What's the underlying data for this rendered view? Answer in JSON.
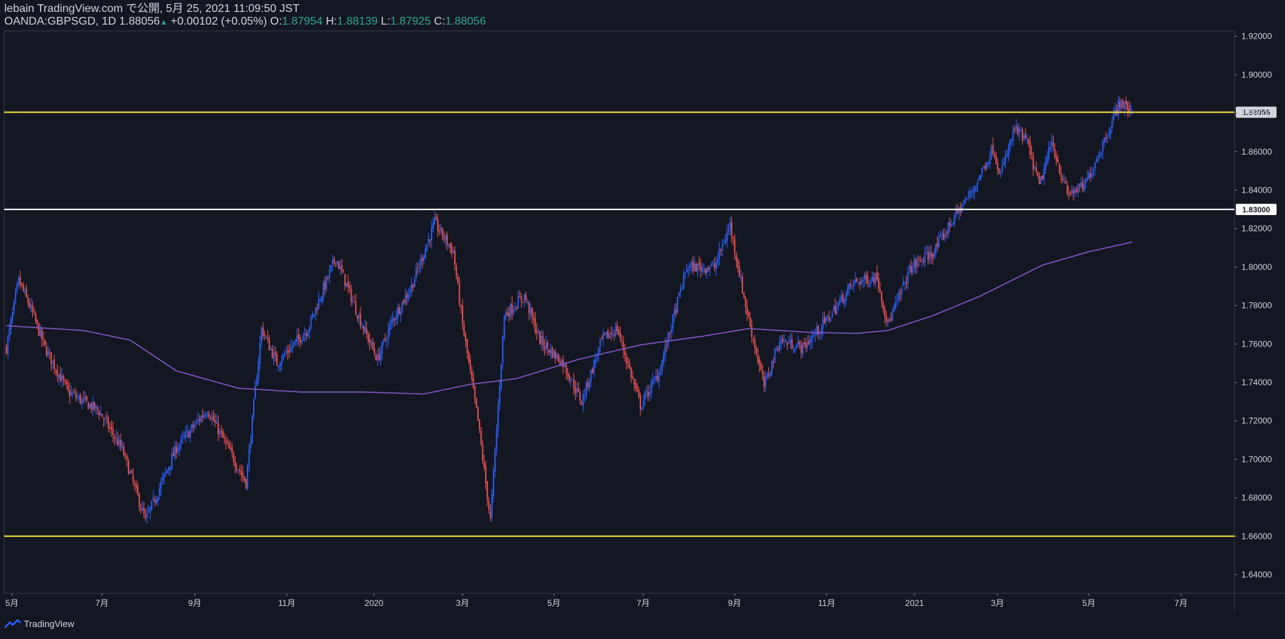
{
  "header": {
    "line1": "lebain TradingView.com で公開, 5月 25, 2021 11:09:50 JST",
    "symbol": "OANDA:GBPSGD, 1D",
    "last": "1.88056",
    "change": "+0.00102 (+0.05%)",
    "o_label": "O:",
    "o_value": "1.87954",
    "h_label": "H:",
    "h_value": "1.88139",
    "l_label": "L:",
    "l_value": "1.87925",
    "c_label": "C:",
    "c_value": "1.88056",
    "up_arrow": "▲"
  },
  "footer": {
    "brand": "TradingView",
    "icon": "tradingview-logo-icon"
  },
  "colors": {
    "background": "#131722",
    "up": "#2962ff",
    "down": "#ef5350",
    "ma": "#7e57c2",
    "hline_yellow": "#f5e038",
    "hline_white": "#ffffff",
    "text": "#d1d4dc",
    "axis": "#363a45"
  },
  "chart_data": {
    "type": "candlestick",
    "title": "OANDA:GBPSGD, 1D",
    "ylim": [
      1.63,
      1.925
    ],
    "y_ticks": [
      "1.64000",
      "1.66000",
      "1.68000",
      "1.70000",
      "1.72000",
      "1.74000",
      "1.76000",
      "1.78000",
      "1.80000",
      "1.82000",
      "1.84000",
      "1.86000",
      "1.88000",
      "1.90000",
      "1.92000"
    ],
    "x_ticks": [
      "5月",
      "7月",
      "9月",
      "11月",
      "2020",
      "3月",
      "5月",
      "7月",
      "9月",
      "11月",
      "2021",
      "3月",
      "5月",
      "7月"
    ],
    "horizontal_lines": [
      {
        "value": 1.88056,
        "label": "1.88056",
        "color": "yellow"
      },
      {
        "value": 1.83,
        "label": "1.83000",
        "color": "white"
      },
      {
        "value": 1.66,
        "label": "",
        "color": "yellow"
      }
    ],
    "price_anchors": [
      {
        "t": 0,
        "close": 1.758
      },
      {
        "t": 8,
        "close": 1.793
      },
      {
        "t": 16,
        "close": 1.778
      },
      {
        "t": 25,
        "close": 1.758
      },
      {
        "t": 40,
        "close": 1.735
      },
      {
        "t": 60,
        "close": 1.725
      },
      {
        "t": 75,
        "close": 1.705
      },
      {
        "t": 90,
        "close": 1.668
      },
      {
        "t": 110,
        "close": 1.706
      },
      {
        "t": 130,
        "close": 1.726
      },
      {
        "t": 155,
        "close": 1.688
      },
      {
        "t": 165,
        "close": 1.768
      },
      {
        "t": 175,
        "close": 1.75
      },
      {
        "t": 195,
        "close": 1.768
      },
      {
        "t": 213,
        "close": 1.805
      },
      {
        "t": 230,
        "close": 1.77
      },
      {
        "t": 240,
        "close": 1.752
      },
      {
        "t": 250,
        "close": 1.773
      },
      {
        "t": 262,
        "close": 1.79
      },
      {
        "t": 277,
        "close": 1.823
      },
      {
        "t": 289,
        "close": 1.808
      },
      {
        "t": 295,
        "close": 1.77
      },
      {
        "t": 305,
        "close": 1.72
      },
      {
        "t": 313,
        "close": 1.668
      },
      {
        "t": 322,
        "close": 1.775
      },
      {
        "t": 335,
        "close": 1.785
      },
      {
        "t": 345,
        "close": 1.762
      },
      {
        "t": 360,
        "close": 1.75
      },
      {
        "t": 372,
        "close": 1.73
      },
      {
        "t": 385,
        "close": 1.762
      },
      {
        "t": 395,
        "close": 1.768
      },
      {
        "t": 410,
        "close": 1.728
      },
      {
        "t": 422,
        "close": 1.745
      },
      {
        "t": 440,
        "close": 1.8
      },
      {
        "t": 458,
        "close": 1.8
      },
      {
        "t": 468,
        "close": 1.822
      },
      {
        "t": 478,
        "close": 1.78
      },
      {
        "t": 490,
        "close": 1.738
      },
      {
        "t": 500,
        "close": 1.762
      },
      {
        "t": 515,
        "close": 1.758
      },
      {
        "t": 530,
        "close": 1.772
      },
      {
        "t": 548,
        "close": 1.792
      },
      {
        "t": 563,
        "close": 1.795
      },
      {
        "t": 570,
        "close": 1.77
      },
      {
        "t": 585,
        "close": 1.8
      },
      {
        "t": 600,
        "close": 1.808
      },
      {
        "t": 612,
        "close": 1.825
      },
      {
        "t": 625,
        "close": 1.84
      },
      {
        "t": 638,
        "close": 1.862
      },
      {
        "t": 643,
        "close": 1.848
      },
      {
        "t": 652,
        "close": 1.872
      },
      {
        "t": 660,
        "close": 1.865
      },
      {
        "t": 668,
        "close": 1.842
      },
      {
        "t": 676,
        "close": 1.865
      },
      {
        "t": 686,
        "close": 1.838
      },
      {
        "t": 697,
        "close": 1.842
      },
      {
        "t": 708,
        "close": 1.862
      },
      {
        "t": 720,
        "close": 1.886
      },
      {
        "t": 728,
        "close": 1.8806
      }
    ],
    "ma_anchors": [
      {
        "t": 0,
        "value": 1.7695
      },
      {
        "t": 50,
        "value": 1.767
      },
      {
        "t": 80,
        "value": 1.762
      },
      {
        "t": 110,
        "value": 1.746
      },
      {
        "t": 150,
        "value": 1.737
      },
      {
        "t": 190,
        "value": 1.735
      },
      {
        "t": 230,
        "value": 1.735
      },
      {
        "t": 270,
        "value": 1.734
      },
      {
        "t": 300,
        "value": 1.739
      },
      {
        "t": 330,
        "value": 1.742
      },
      {
        "t": 370,
        "value": 1.752
      },
      {
        "t": 410,
        "value": 1.7595
      },
      {
        "t": 450,
        "value": 1.764
      },
      {
        "t": 480,
        "value": 1.768
      },
      {
        "t": 520,
        "value": 1.766
      },
      {
        "t": 550,
        "value": 1.7655
      },
      {
        "t": 570,
        "value": 1.767
      },
      {
        "t": 600,
        "value": 1.775
      },
      {
        "t": 630,
        "value": 1.785
      },
      {
        "t": 670,
        "value": 1.801
      },
      {
        "t": 700,
        "value": 1.808
      },
      {
        "t": 728,
        "value": 1.813
      }
    ],
    "series": [
      {
        "name": "GBPSGD daily candles"
      },
      {
        "name": "Moving average"
      }
    ],
    "xlabel": "",
    "ylabel": ""
  }
}
